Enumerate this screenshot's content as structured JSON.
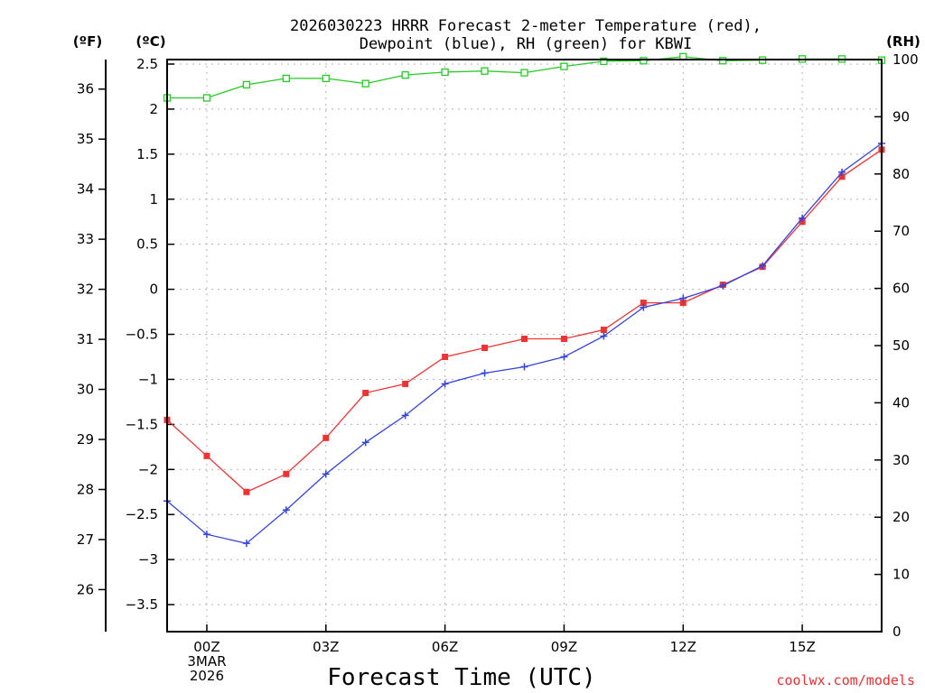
{
  "chart_data": {
    "type": "line",
    "title_line1": "2026030223 HRRR Forecast 2-meter Temperature (red),",
    "title_line2": "Dewpoint (blue), RH (green) for KBWI",
    "xlabel": "Forecast Time (UTC)",
    "credit": "coolwx.com/models",
    "unit_labels": {
      "fahrenheit": "(ºF)",
      "celsius": "(ºC)",
      "rh": "(RH)"
    },
    "x_hours": [
      -1,
      0,
      1,
      2,
      3,
      4,
      5,
      6,
      7,
      8,
      9,
      10,
      11,
      12,
      13,
      14,
      15,
      16,
      17
    ],
    "x_ticks": [
      {
        "hour": 0,
        "lines": [
          "00Z",
          "3MAR",
          "2026"
        ]
      },
      {
        "hour": 3,
        "lines": [
          "03Z"
        ]
      },
      {
        "hour": 6,
        "lines": [
          "06Z"
        ]
      },
      {
        "hour": 9,
        "lines": [
          "09Z"
        ]
      },
      {
        "hour": 12,
        "lines": [
          "12Z"
        ]
      },
      {
        "hour": 15,
        "lines": [
          "15Z"
        ]
      }
    ],
    "x_range": [
      -1,
      17
    ],
    "celsius_range": [
      -3.8,
      2.55
    ],
    "celsius_ticks": [
      "2.5",
      "2",
      "1.5",
      "1",
      "0.5",
      "0",
      "-0.5",
      "-1",
      "-1.5",
      "-2",
      "-2.5",
      "-3",
      "-3.5"
    ],
    "fahrenheit_ticks": [
      "36",
      "35",
      "34",
      "33",
      "32",
      "31",
      "30",
      "29",
      "28",
      "27",
      "26"
    ],
    "rh_range": [
      0,
      100
    ],
    "rh_ticks": [
      "100",
      "90",
      "80",
      "70",
      "60",
      "50",
      "40",
      "30",
      "20",
      "10",
      "0"
    ],
    "series": [
      {
        "name": "Temperature",
        "color": "#ee3333",
        "marker": "square",
        "values": [
          -1.45,
          -1.85,
          -2.25,
          -2.05,
          -1.65,
          -1.15,
          -1.05,
          -0.75,
          -0.65,
          -0.55,
          -0.55,
          -0.45,
          -0.15,
          -0.15,
          0.05,
          0.25,
          0.75,
          1.25,
          1.55
        ]
      },
      {
        "name": "Dewpoint",
        "color": "#3344dd",
        "marker": "plus",
        "values": [
          -2.35,
          -2.72,
          -2.82,
          -2.45,
          -2.05,
          -1.7,
          -1.4,
          -1.05,
          -0.93,
          -0.86,
          -0.75,
          -0.52,
          -0.2,
          -0.1,
          0.04,
          0.26,
          0.79,
          1.3,
          1.62
        ]
      },
      {
        "name": "RH",
        "color": "#22cc22",
        "marker": "open-square",
        "values": [
          93.3,
          93.3,
          95.6,
          96.7,
          96.7,
          95.8,
          97.3,
          97.8,
          98,
          97.7,
          98.8,
          99.7,
          99.8,
          100.5,
          99.8,
          99.9,
          100.1,
          100.1,
          99.9
        ]
      }
    ]
  }
}
